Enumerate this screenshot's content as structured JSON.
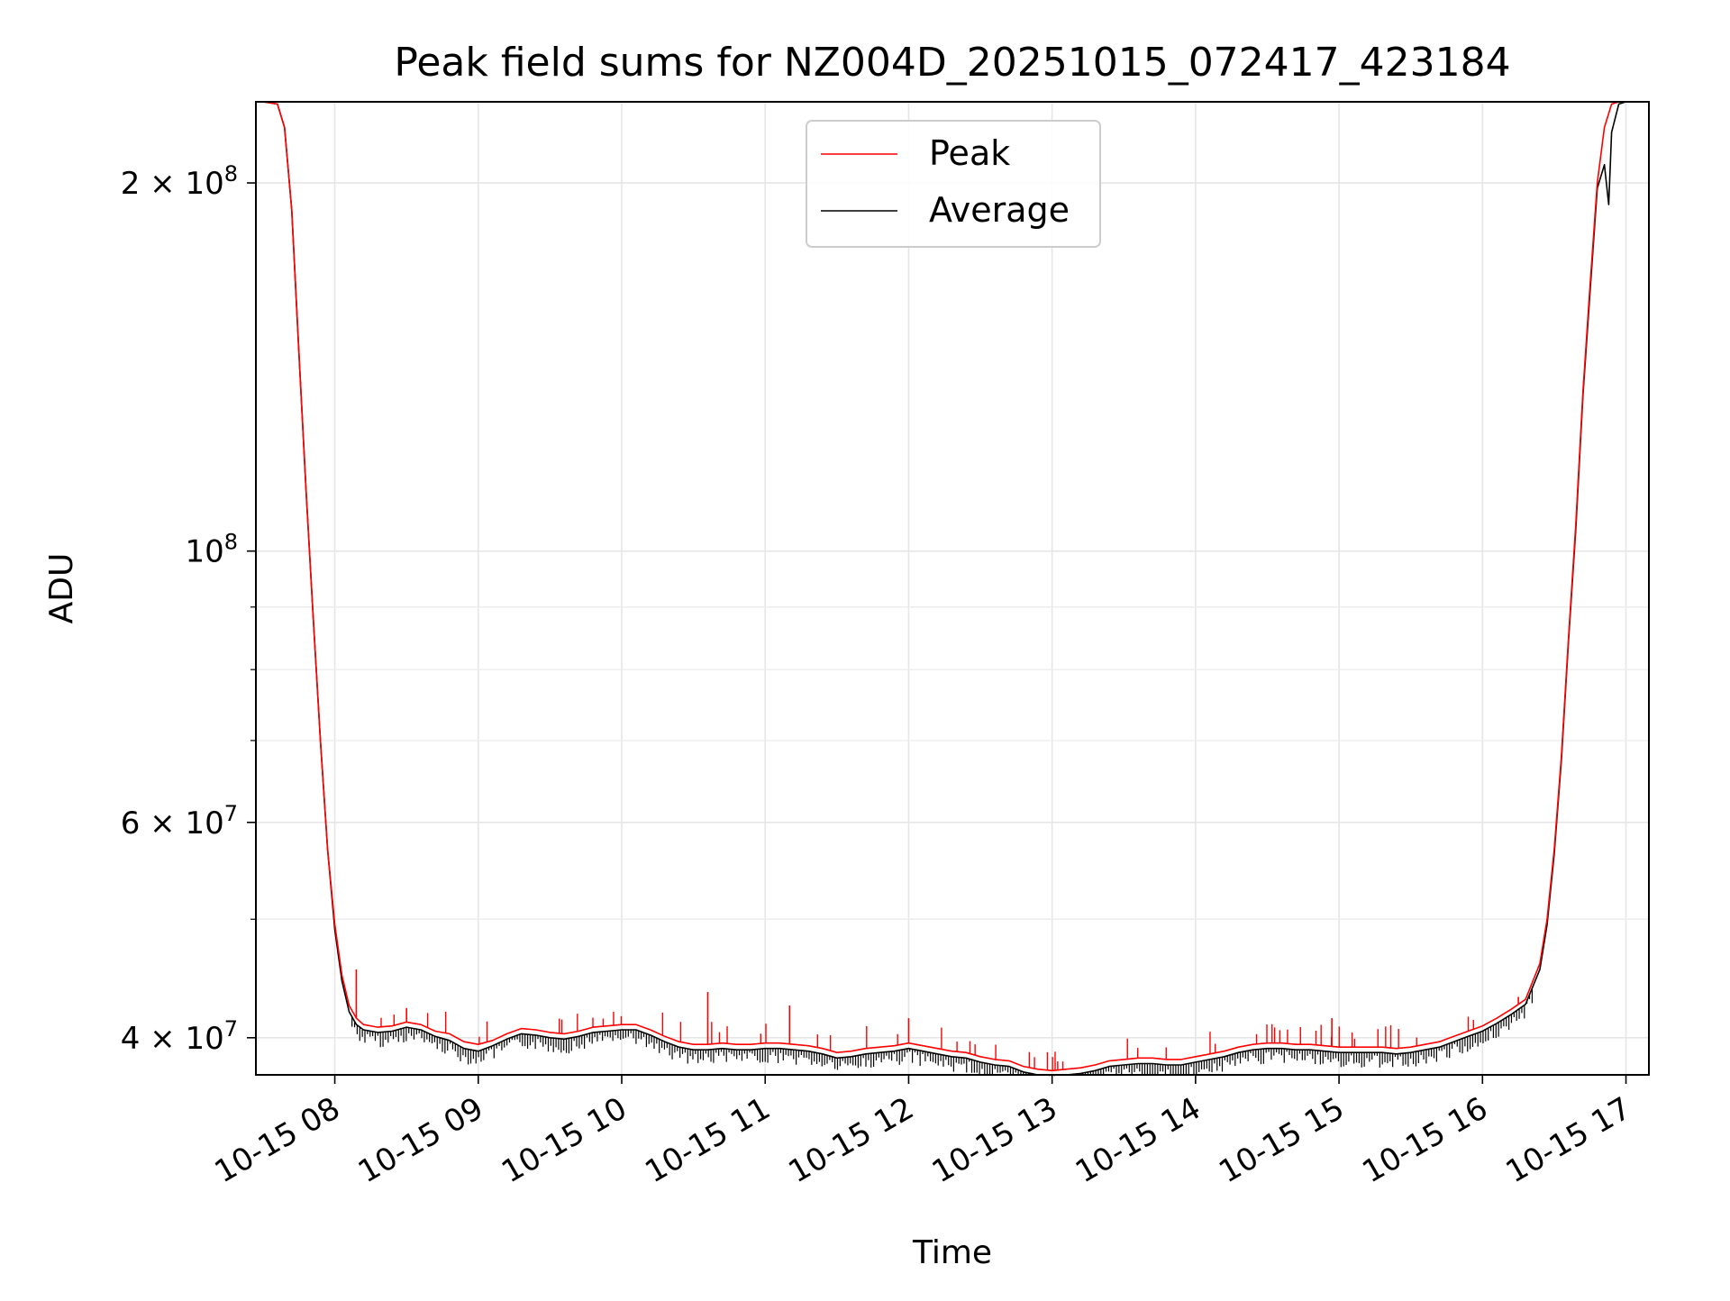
{
  "chart_data": {
    "type": "line",
    "title": "Peak field sums for NZ004D_20251015_072417_423184",
    "xlabel": "Time",
    "ylabel": "ADU",
    "yscale": "log",
    "xlim": [
      7.45,
      17.16
    ],
    "ylim": [
      37300000,
      233000000
    ],
    "grid": true,
    "legend_position": "upper center",
    "x_ticks": [
      {
        "value": 8,
        "label": "10-15 08"
      },
      {
        "value": 9,
        "label": "10-15 09"
      },
      {
        "value": 10,
        "label": "10-15 10"
      },
      {
        "value": 11,
        "label": "10-15 11"
      },
      {
        "value": 12,
        "label": "10-15 12"
      },
      {
        "value": 13,
        "label": "10-15 13"
      },
      {
        "value": 14,
        "label": "10-15 14"
      },
      {
        "value": 15,
        "label": "10-15 15"
      },
      {
        "value": 16,
        "label": "10-15 16"
      },
      {
        "value": 17,
        "label": "10-15 17"
      }
    ],
    "y_ticks_major": [
      {
        "value": 40000000,
        "mantissa": "4",
        "exp": "7"
      },
      {
        "value": 60000000,
        "mantissa": "6",
        "exp": "7"
      },
      {
        "value": 100000000,
        "mantissa": "",
        "exp": "8"
      },
      {
        "value": 200000000,
        "mantissa": "2",
        "exp": "8"
      }
    ],
    "y_ticks_minor": [
      50000000,
      70000000,
      80000000,
      90000000
    ],
    "series": [
      {
        "name": "Peak",
        "color": "#ff0000",
        "x": [
          7.45,
          7.5,
          7.6,
          7.65,
          7.7,
          7.75,
          7.8,
          7.85,
          7.9,
          7.95,
          8.0,
          8.05,
          8.1,
          8.15,
          8.2,
          8.3,
          8.4,
          8.5,
          8.6,
          8.7,
          8.8,
          8.9,
          9.0,
          9.1,
          9.2,
          9.3,
          9.4,
          9.5,
          9.6,
          9.7,
          9.8,
          9.9,
          10.0,
          10.1,
          10.2,
          10.3,
          10.4,
          10.5,
          10.6,
          10.7,
          10.8,
          10.9,
          11.0,
          11.1,
          11.2,
          11.3,
          11.4,
          11.5,
          11.6,
          11.7,
          11.8,
          11.9,
          12.0,
          12.1,
          12.2,
          12.3,
          12.4,
          12.5,
          12.6,
          12.7,
          12.8,
          12.9,
          13.0,
          13.1,
          13.2,
          13.3,
          13.4,
          13.5,
          13.6,
          13.7,
          13.8,
          13.9,
          14.0,
          14.1,
          14.2,
          14.3,
          14.4,
          14.5,
          14.6,
          14.7,
          14.8,
          14.9,
          15.0,
          15.1,
          15.2,
          15.3,
          15.4,
          15.5,
          15.6,
          15.7,
          15.8,
          15.9,
          16.0,
          16.1,
          16.2,
          16.3,
          16.4,
          16.45,
          16.5,
          16.55,
          16.6,
          16.65,
          16.7,
          16.75,
          16.8,
          16.85,
          16.9,
          16.95,
          17.0
        ],
        "values": [
          233000000,
          233000000,
          232000000,
          222000000,
          190000000,
          145000000,
          112000000,
          88000000,
          70000000,
          57000000,
          49500000,
          45000000,
          42500000,
          41500000,
          41000000,
          40800000,
          40900000,
          41200000,
          41000000,
          40500000,
          40300000,
          39700000,
          39500000,
          39800000,
          40300000,
          40700000,
          40600000,
          40400000,
          40300000,
          40500000,
          40800000,
          40900000,
          41000000,
          41000000,
          40600000,
          40100000,
          39700000,
          39500000,
          39500000,
          39600000,
          39500000,
          39500000,
          39600000,
          39600000,
          39500000,
          39400000,
          39200000,
          38900000,
          39000000,
          39200000,
          39300000,
          39400000,
          39600000,
          39400000,
          39200000,
          39000000,
          38900000,
          38600000,
          38400000,
          38300000,
          37900000,
          37700000,
          37600000,
          37700000,
          37800000,
          38000000,
          38300000,
          38400000,
          38500000,
          38500000,
          38400000,
          38400000,
          38600000,
          38800000,
          39000000,
          39300000,
          39500000,
          39600000,
          39600000,
          39500000,
          39500000,
          39400000,
          39300000,
          39300000,
          39300000,
          39300000,
          39200000,
          39300000,
          39500000,
          39700000,
          40100000,
          40500000,
          40900000,
          41500000,
          42200000,
          43000000,
          46000000,
          50000000,
          57000000,
          68000000,
          85000000,
          105000000,
          135000000,
          165000000,
          200000000,
          222000000,
          232000000,
          233000000,
          233000000
        ]
      },
      {
        "name": "Average",
        "color": "#000000",
        "x": [
          7.45,
          7.5,
          7.6,
          7.65,
          7.7,
          7.75,
          7.8,
          7.85,
          7.9,
          7.95,
          8.0,
          8.05,
          8.1,
          8.15,
          8.2,
          8.3,
          8.4,
          8.5,
          8.6,
          8.7,
          8.8,
          8.9,
          9.0,
          9.1,
          9.2,
          9.3,
          9.4,
          9.5,
          9.6,
          9.7,
          9.8,
          9.9,
          10.0,
          10.1,
          10.2,
          10.3,
          10.4,
          10.5,
          10.6,
          10.7,
          10.8,
          10.9,
          11.0,
          11.1,
          11.2,
          11.3,
          11.4,
          11.5,
          11.6,
          11.7,
          11.8,
          11.9,
          12.0,
          12.1,
          12.2,
          12.3,
          12.4,
          12.5,
          12.6,
          12.7,
          12.8,
          12.9,
          13.0,
          13.1,
          13.2,
          13.3,
          13.4,
          13.5,
          13.6,
          13.7,
          13.8,
          13.9,
          14.0,
          14.1,
          14.2,
          14.3,
          14.4,
          14.5,
          14.6,
          14.7,
          14.8,
          14.9,
          15.0,
          15.1,
          15.2,
          15.3,
          15.4,
          15.5,
          15.6,
          15.7,
          15.8,
          15.9,
          16.0,
          16.1,
          16.2,
          16.3,
          16.4,
          16.45,
          16.5,
          16.55,
          16.6,
          16.65,
          16.7,
          16.75,
          16.8,
          16.85,
          16.88,
          16.9,
          16.95,
          17.0
        ],
        "values": [
          233000000,
          233000000,
          232000000,
          222000000,
          190000000,
          145000000,
          112000000,
          88000000,
          70000000,
          57000000,
          49000000,
          44500000,
          42000000,
          41000000,
          40600000,
          40400000,
          40500000,
          40800000,
          40600000,
          40100000,
          39800000,
          39200000,
          39000000,
          39400000,
          39900000,
          40300000,
          40200000,
          40000000,
          39900000,
          40100000,
          40400000,
          40500000,
          40600000,
          40600000,
          40200000,
          39700000,
          39300000,
          39100000,
          39100000,
          39200000,
          39100000,
          39100000,
          39200000,
          39200000,
          39100000,
          39000000,
          38800000,
          38500000,
          38600000,
          38800000,
          38900000,
          39000000,
          39200000,
          39000000,
          38800000,
          38600000,
          38500000,
          38200000,
          38000000,
          37900000,
          37500000,
          37300000,
          37200000,
          37300000,
          37400000,
          37600000,
          37900000,
          38000000,
          38100000,
          38100000,
          38000000,
          38000000,
          38200000,
          38400000,
          38600000,
          38900000,
          39100000,
          39200000,
          39200000,
          39100000,
          39100000,
          39000000,
          38900000,
          38900000,
          38900000,
          38900000,
          38800000,
          38900000,
          39100000,
          39300000,
          39700000,
          40100000,
          40500000,
          41100000,
          41800000,
          42600000,
          45500000,
          49500000,
          56500000,
          67500000,
          84500000,
          104000000,
          134000000,
          163000000,
          198000000,
          207000000,
          192000000,
          220000000,
          232000000,
          233000000
        ]
      }
    ]
  },
  "legend": {
    "entries": [
      {
        "label": "Peak",
        "color": "#ff0000"
      },
      {
        "label": "Average",
        "color": "#000000"
      }
    ]
  }
}
